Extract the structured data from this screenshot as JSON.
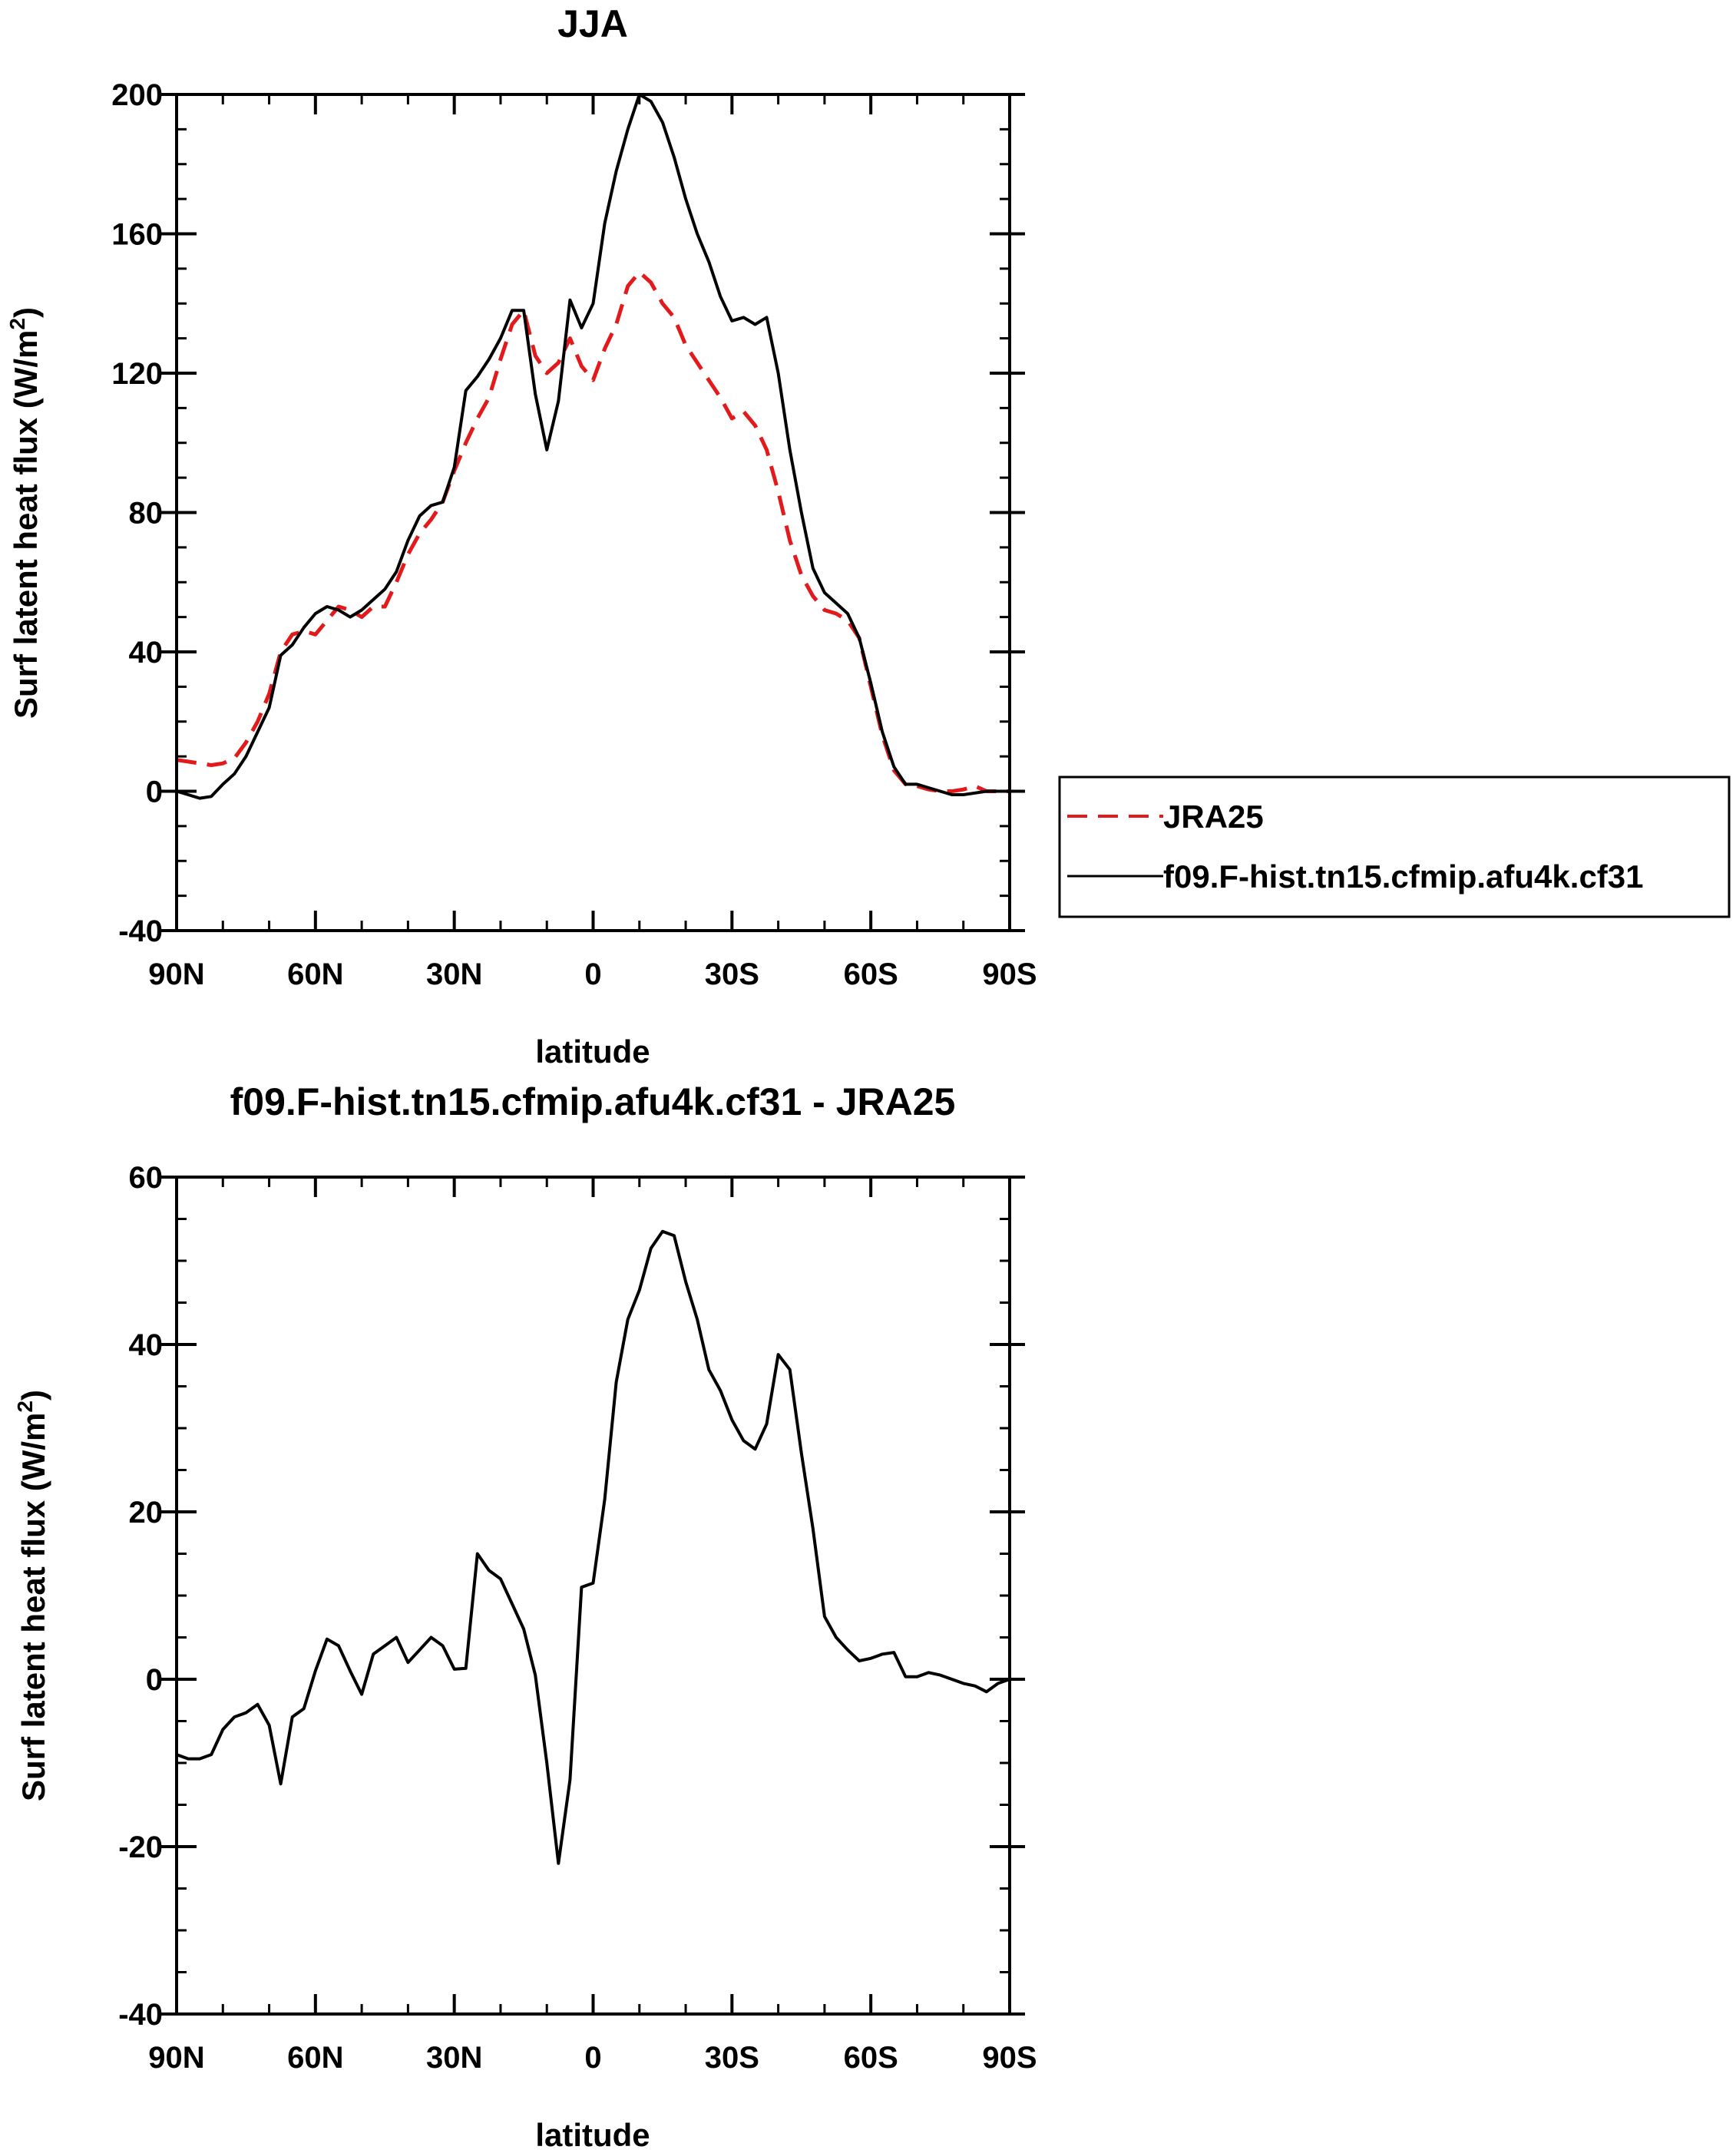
{
  "chart_data": [
    {
      "type": "line",
      "title": "JJA",
      "xlabel": "latitude",
      "ylabel": "Surf latent heat flux (W/m",
      "ylabel_superscript": "2",
      "ylabel_close": ")",
      "xlim": [
        90,
        -90
      ],
      "ylim": [
        -40,
        200
      ],
      "x_ticks": [
        {
          "value": 90,
          "label": "90N"
        },
        {
          "value": 60,
          "label": "60N"
        },
        {
          "value": 30,
          "label": "30N"
        },
        {
          "value": 0,
          "label": "0"
        },
        {
          "value": -30,
          "label": "30S"
        },
        {
          "value": -60,
          "label": "60S"
        },
        {
          "value": -90,
          "label": "90S"
        }
      ],
      "y_ticks": [
        -40,
        0,
        40,
        80,
        120,
        160,
        200
      ],
      "y_tick_labels": [
        "-40",
        "0",
        "40",
        "80",
        "120",
        "160",
        "200"
      ],
      "grid": false,
      "legend": {
        "placement": "right"
      },
      "series": [
        {
          "name": "JRA25",
          "color": "#e31a1c",
          "style": "dashed",
          "x": [
            90,
            87.5,
            85,
            82.5,
            80,
            77.5,
            75,
            72.5,
            70,
            67.5,
            65,
            62.5,
            60,
            57.5,
            55,
            52.5,
            50,
            47.5,
            45,
            42.5,
            40,
            37.5,
            35,
            32.5,
            30,
            27.5,
            25,
            22.5,
            20,
            17.5,
            15,
            12.5,
            10,
            7.5,
            5,
            2.5,
            0,
            -2.5,
            -5,
            -7.5,
            -10,
            -12.5,
            -15,
            -17.5,
            -20,
            -22.5,
            -25,
            -27.5,
            -30,
            -32.5,
            -35,
            -37.5,
            -40,
            -42.5,
            -45,
            -47.5,
            -50,
            -52.5,
            -55,
            -57.5,
            -60,
            -62.5,
            -65,
            -67.5,
            -70,
            -72.5,
            -75,
            -77.5,
            -80,
            -82.5,
            -85,
            -87.5,
            -90
          ],
          "y": [
            9,
            8.5,
            8,
            7.5,
            8,
            9.5,
            14,
            20,
            28,
            40,
            45,
            46,
            45,
            49,
            53,
            52,
            50,
            53,
            53,
            60,
            68,
            74,
            78,
            83,
            92,
            100,
            107,
            113,
            124,
            134,
            138,
            125,
            120,
            123,
            130,
            122,
            118,
            127,
            134,
            145,
            149,
            146,
            140,
            136,
            128,
            123,
            118,
            113,
            107,
            109,
            105,
            98,
            86,
            72,
            62,
            56,
            52,
            51,
            49,
            44,
            30,
            16,
            6,
            2,
            1.5,
            0.5,
            0,
            0,
            0.5,
            1.5,
            0,
            0,
            0
          ]
        },
        {
          "name": "f09.F-hist.tn15.cfmip.afu4k.cf31",
          "color": "#000000",
          "style": "solid",
          "x": [
            90,
            87.5,
            85,
            82.5,
            80,
            77.5,
            75,
            72.5,
            70,
            67.5,
            65,
            62.5,
            60,
            57.5,
            55,
            52.5,
            50,
            47.5,
            45,
            42.5,
            40,
            37.5,
            35,
            32.5,
            30,
            27.5,
            25,
            22.5,
            20,
            17.5,
            15,
            12.5,
            10,
            7.5,
            5,
            2.5,
            0,
            -2.5,
            -5,
            -7.5,
            -10,
            -12.5,
            -15,
            -17.5,
            -20,
            -22.5,
            -25,
            -27.5,
            -30,
            -32.5,
            -35,
            -37.5,
            -40,
            -42.5,
            -45,
            -47.5,
            -50,
            -52.5,
            -55,
            -57.5,
            -60,
            -62.5,
            -65,
            -67.5,
            -70,
            -72.5,
            -75,
            -77.5,
            -80,
            -82.5,
            -85,
            -87.5,
            -90
          ],
          "y": [
            0,
            -1,
            -2,
            -1.5,
            2,
            5,
            10,
            17,
            24,
            39,
            42,
            47,
            51,
            53,
            52,
            50,
            52,
            55,
            58,
            63,
            72,
            79,
            82,
            83,
            93,
            115,
            119,
            124,
            130,
            138,
            138,
            114,
            98,
            112,
            141,
            133,
            140,
            163,
            178,
            190,
            200,
            198,
            192,
            182,
            170,
            160,
            152,
            142,
            135,
            136,
            134,
            136,
            120,
            98,
            80,
            64,
            57,
            54,
            51,
            44,
            31,
            17,
            7,
            2,
            2,
            1,
            0,
            -1,
            -1,
            -0.5,
            0,
            0,
            0
          ]
        }
      ]
    },
    {
      "type": "line",
      "title": "f09.F-hist.tn15.cfmip.afu4k.cf31 - JRA25",
      "xlabel": "latitude",
      "ylabel": "Surf latent heat flux (W/m",
      "ylabel_superscript": "2",
      "ylabel_close": ")",
      "xlim": [
        90,
        -90
      ],
      "ylim": [
        -40,
        60
      ],
      "x_ticks": [
        {
          "value": 90,
          "label": "90N"
        },
        {
          "value": 60,
          "label": "60N"
        },
        {
          "value": 30,
          "label": "30N"
        },
        {
          "value": 0,
          "label": "0"
        },
        {
          "value": -30,
          "label": "30S"
        },
        {
          "value": -60,
          "label": "60S"
        },
        {
          "value": -90,
          "label": "90S"
        }
      ],
      "y_ticks": [
        -40,
        -20,
        0,
        20,
        40,
        60
      ],
      "y_tick_labels": [
        "-40",
        "-20",
        "0",
        "20",
        "40",
        "60"
      ],
      "grid": false,
      "series": [
        {
          "color": "#000000",
          "style": "solid",
          "x": [
            90,
            87.5,
            85,
            82.5,
            80,
            77.5,
            75,
            72.5,
            70,
            67.5,
            65,
            62.5,
            60,
            57.5,
            55,
            52.5,
            50,
            47.5,
            45,
            42.5,
            40,
            37.5,
            35,
            32.5,
            30,
            27.5,
            25,
            22.5,
            20,
            17.5,
            15,
            12.5,
            10,
            7.5,
            5,
            2.5,
            0,
            -2.5,
            -5,
            -7.5,
            -10,
            -12.5,
            -15,
            -17.5,
            -20,
            -22.5,
            -25,
            -27.5,
            -30,
            -32.5,
            -35,
            -37.5,
            -40,
            -42.5,
            -45,
            -47.5,
            -50,
            -52.5,
            -55,
            -57.5,
            -60,
            -62.5,
            -65,
            -67.5,
            -70,
            -72.5,
            -75,
            -77.5,
            -80,
            -82.5,
            -85,
            -87.5,
            -90
          ],
          "y": [
            -9,
            -9.5,
            -9.5,
            -9,
            -6,
            -4.5,
            -4,
            -3,
            -5.5,
            -12.5,
            -4.5,
            -3.5,
            1,
            4.8,
            4,
            1,
            -1.8,
            3,
            4,
            5,
            2,
            3.5,
            5,
            4,
            1.2,
            1.3,
            15,
            13,
            12,
            9,
            6,
            0.5,
            -10,
            -22,
            -12,
            11,
            11.5,
            21.5,
            35.5,
            43,
            46.5,
            51.5,
            53.5,
            53,
            47.5,
            43,
            37,
            34.5,
            31,
            28.5,
            27.5,
            30.5,
            38.8,
            37,
            27,
            18,
            7.5,
            5,
            3.5,
            2.2,
            2.5,
            3,
            3.2,
            0.3,
            0.3,
            0.8,
            0.5,
            0,
            -0.5,
            -0.8,
            -1.5,
            -0.5,
            0
          ]
        }
      ]
    }
  ]
}
